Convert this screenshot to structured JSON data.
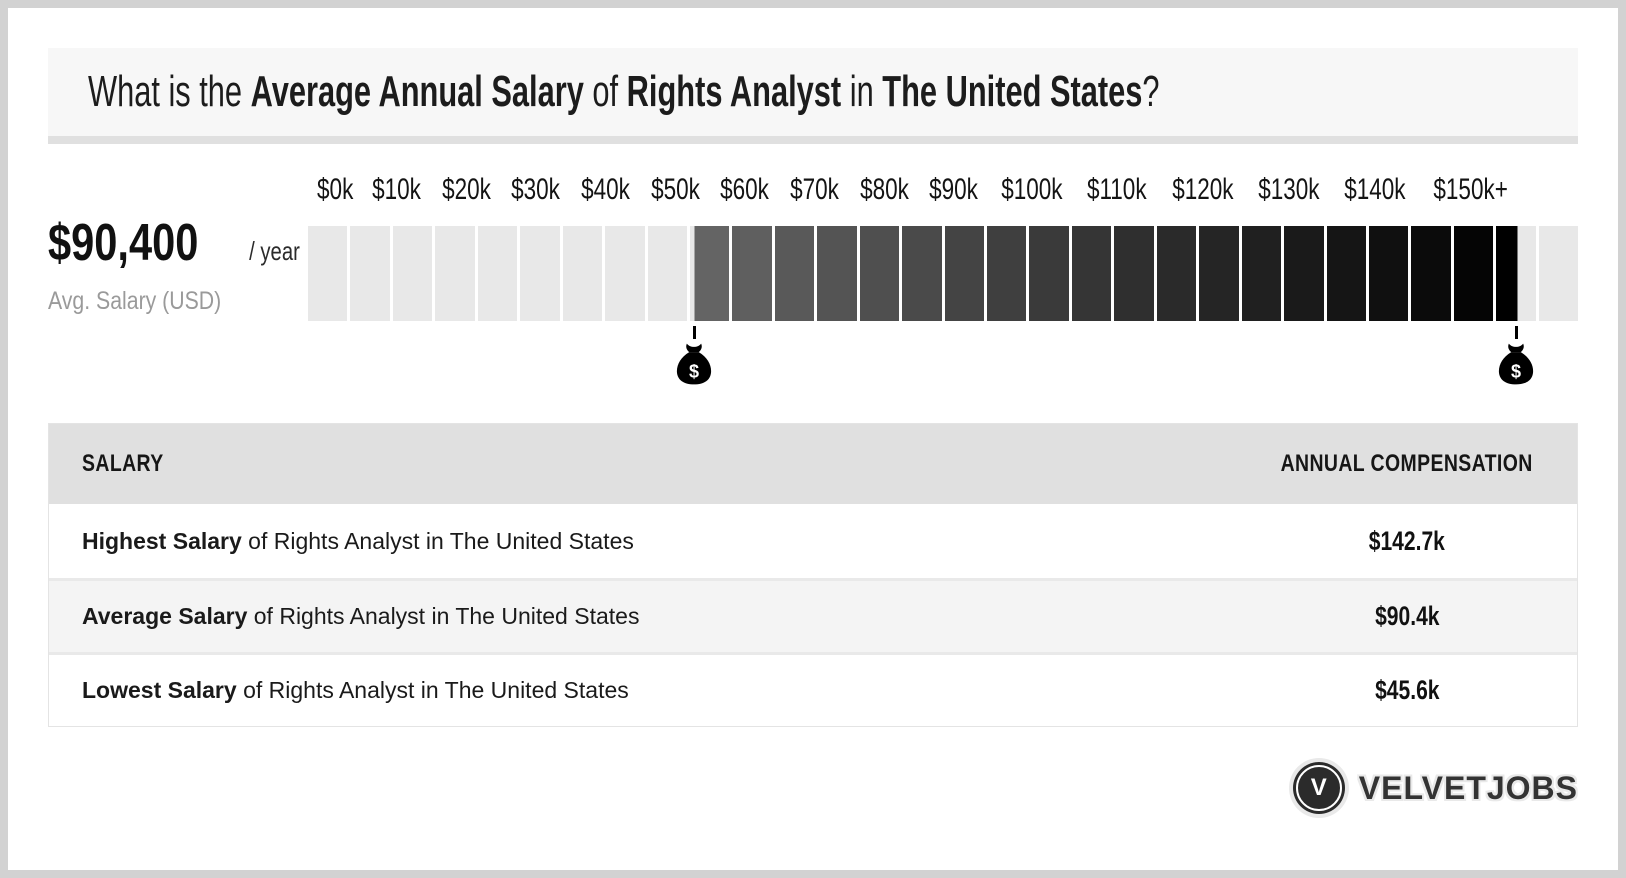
{
  "header": {
    "title_parts": {
      "t1": "What is the ",
      "t2": "Average Annual Salary",
      "t3": " of ",
      "t4": "Rights Analyst",
      "t5": " in ",
      "t6": "The United States",
      "t7": "?"
    }
  },
  "summary": {
    "amount": "$90,400",
    "suffix": "/ year",
    "caption": "Avg. Salary (USD)"
  },
  "scale": {
    "tick_labels": [
      "$0k",
      "$10k",
      "$20k",
      "$30k",
      "$40k",
      "$50k",
      "$60k",
      "$70k",
      "$80k",
      "$90k",
      "$100k",
      "$110k",
      "$120k",
      "$130k",
      "$140k",
      "$150k+"
    ],
    "min_usd": 0,
    "max_usd": 150000,
    "segment_size_usd": 5000,
    "range_low_usd": 45600,
    "range_high_usd": 142700,
    "colors": {
      "empty_segment": "#e8e8e8",
      "fill_start": "#666666",
      "fill_end": "#000000",
      "marker": "#000000"
    },
    "marker_icon": "money-bag-icon",
    "marker_glyph": "$"
  },
  "chart_data": {
    "type": "bar",
    "title": "What is the Average Annual Salary of Rights Analyst in The United States?",
    "xlabel": "",
    "ylabel": "",
    "x_tick_labels": [
      "$0k",
      "$10k",
      "$20k",
      "$30k",
      "$40k",
      "$50k",
      "$60k",
      "$70k",
      "$80k",
      "$90k",
      "$100k",
      "$110k",
      "$120k",
      "$130k",
      "$140k",
      "$150k+"
    ],
    "x_range_usd": [
      0,
      150000
    ],
    "segment_width_usd": 5000,
    "series": [
      {
        "name": "Salary range (gradient highlighted band)",
        "low_usd": 45600,
        "high_usd": 142700
      }
    ],
    "values": {
      "lowest_usd": 45600,
      "average_usd": 90400,
      "highest_usd": 142700
    },
    "legend": null,
    "grid": false,
    "annotations": [
      "money-bag marker at $45.6k",
      "money-bag marker at $142.7k"
    ]
  },
  "table": {
    "headers": {
      "salary": "SALARY",
      "compensation": "ANNUAL COMPENSATION"
    },
    "rows": [
      {
        "label_bold": "Highest Salary",
        "label_rest": " of Rights Analyst in The United States",
        "value": "$142.7k"
      },
      {
        "label_bold": "Average Salary",
        "label_rest": " of Rights Analyst in The United States",
        "value": "$90.4k"
      },
      {
        "label_bold": "Lowest Salary",
        "label_rest": " of Rights Analyst in The United States",
        "value": "$45.6k"
      }
    ]
  },
  "footer": {
    "logo_letter": "V",
    "brand": "VELVETJOBS"
  }
}
